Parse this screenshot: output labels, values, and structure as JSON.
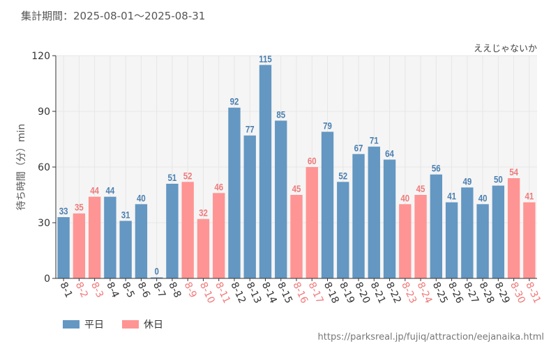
{
  "header": {
    "period_label": "集計期間：2025-08-01〜2025-08-31",
    "attraction_name": "ええじゃないか",
    "source_url": "https://parksreal.jp/fujiq/attraction/eejanaika.html"
  },
  "colors": {
    "weekday": "#6497c2",
    "holiday": "#ff9494",
    "weekday_text": "#4a7fb0",
    "holiday_text": "#f07a7a",
    "plot_bg": "#f5f5f5",
    "grid": "#e6e6e6"
  },
  "chart_data": {
    "type": "bar",
    "title": "",
    "xlabel": "",
    "ylabel": "待ち時間（分）min",
    "ylim": [
      0,
      120
    ],
    "yticks": [
      0,
      30,
      60,
      90,
      120
    ],
    "grid": true,
    "legend_position": "bottom-left",
    "legend": [
      {
        "key": "weekday",
        "label": "平日"
      },
      {
        "key": "holiday",
        "label": "休日"
      }
    ],
    "categories": [
      "8-1",
      "8-2",
      "8-3",
      "8-4",
      "8-5",
      "8-6",
      "8-7",
      "8-8",
      "8-9",
      "8-10",
      "8-11",
      "8-12",
      "8-13",
      "8-14",
      "8-15",
      "8-16",
      "8-17",
      "8-18",
      "8-19",
      "8-20",
      "8-21",
      "8-22",
      "8-23",
      "8-24",
      "8-25",
      "8-26",
      "8-27",
      "8-28",
      "8-29",
      "8-30",
      "8-31"
    ],
    "values": [
      33,
      35,
      44,
      44,
      31,
      40,
      0,
      51,
      52,
      32,
      46,
      92,
      77,
      115,
      85,
      45,
      60,
      79,
      52,
      67,
      71,
      64,
      40,
      45,
      56,
      41,
      49,
      40,
      50,
      54,
      41
    ],
    "day_type": [
      "weekday",
      "holiday",
      "holiday",
      "weekday",
      "weekday",
      "weekday",
      "weekday",
      "weekday",
      "holiday",
      "holiday",
      "holiday",
      "weekday",
      "weekday",
      "weekday",
      "weekday",
      "holiday",
      "holiday",
      "weekday",
      "weekday",
      "weekday",
      "weekday",
      "weekday",
      "holiday",
      "holiday",
      "weekday",
      "weekday",
      "weekday",
      "weekday",
      "weekday",
      "holiday",
      "holiday"
    ]
  }
}
